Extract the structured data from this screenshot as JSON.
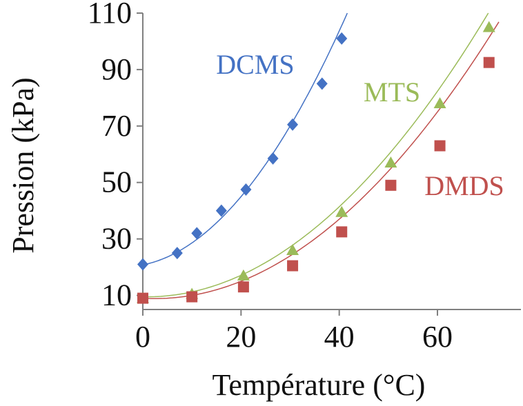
{
  "chart_data": {
    "type": "scatter",
    "xlabel": "Température (°C)",
    "ylabel": "Pression (kPa)",
    "xlim": [
      0,
      77
    ],
    "ylim": [
      5,
      110
    ],
    "xticks": [
      0,
      20,
      40,
      60
    ],
    "yticks": [
      10,
      30,
      50,
      70,
      90,
      110
    ],
    "grid": false,
    "legend": "inline labels",
    "series": [
      {
        "name": "DCMS",
        "color": "#4472C4",
        "marker": "diamond",
        "points": [
          [
            0,
            21
          ],
          [
            7,
            25
          ],
          [
            11,
            32
          ],
          [
            16,
            40
          ],
          [
            21,
            47.5
          ],
          [
            26.5,
            58.5
          ],
          [
            30.5,
            70.5
          ],
          [
            36.5,
            85
          ],
          [
            40.5,
            101
          ]
        ],
        "fit": [
          0.0431,
          0.3475,
          20.8
        ]
      },
      {
        "name": "MTS",
        "color": "#9BBB59",
        "marker": "triangle",
        "points": [
          [
            0,
            9
          ],
          [
            10,
            10.5
          ],
          [
            20.5,
            17
          ],
          [
            30.5,
            26
          ],
          [
            40.5,
            39.5
          ],
          [
            50.5,
            57
          ],
          [
            60.5,
            78
          ],
          [
            70.5,
            105
          ]
        ],
        "fit": [
          0.0208,
          -0.0346,
          9.5
        ]
      },
      {
        "name": "DMDS",
        "color": "#C0504D",
        "marker": "square",
        "points": [
          [
            0,
            9
          ],
          [
            10,
            9.5
          ],
          [
            20.5,
            13
          ],
          [
            30.5,
            20.5
          ],
          [
            40.5,
            32.5
          ],
          [
            50.5,
            49
          ],
          [
            60.5,
            63
          ],
          [
            70.5,
            92.5
          ]
        ],
        "fit": [
          0.02,
          -0.1,
          9.0
        ]
      }
    ]
  }
}
